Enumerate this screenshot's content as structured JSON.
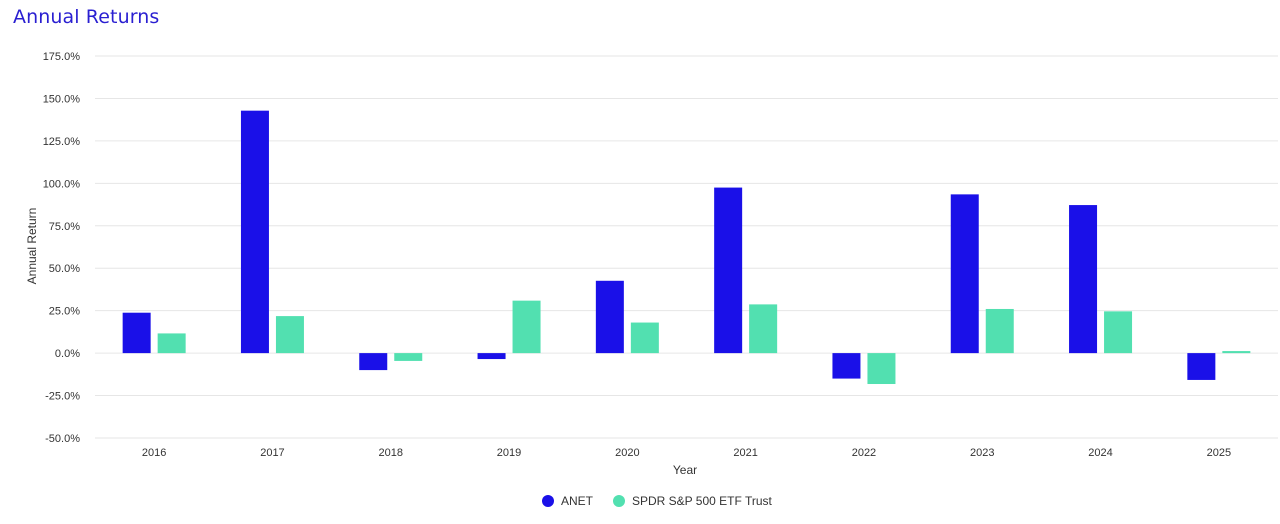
{
  "chart_data": {
    "type": "bar",
    "title": "Annual Returns",
    "xlabel": "Year",
    "ylabel": "Annual Return",
    "categories": [
      "2016",
      "2017",
      "2018",
      "2019",
      "2020",
      "2021",
      "2022",
      "2023",
      "2024",
      "2025"
    ],
    "series": [
      {
        "name": "ANET",
        "color": "#1a10e8",
        "values": [
          23.8,
          142.8,
          -10.0,
          -3.5,
          42.6,
          97.5,
          -15.0,
          93.5,
          87.2,
          -15.8
        ]
      },
      {
        "name": "SPDR S&P 500 ETF Trust",
        "color": "#52e0b0",
        "values": [
          11.6,
          21.8,
          -4.6,
          30.9,
          18.0,
          28.7,
          -18.2,
          26.0,
          24.6,
          1.2
        ]
      }
    ],
    "ylim": [
      -50,
      175
    ],
    "yticks": [
      -50,
      -25,
      0,
      25,
      50,
      75,
      100,
      125,
      150,
      175
    ],
    "ytick_labels": [
      "-50.0%",
      "-25.0%",
      "0.0%",
      "25.0%",
      "50.0%",
      "75.0%",
      "100.0%",
      "125.0%",
      "150.0%",
      "175.0%"
    ],
    "grid": true,
    "legend": "bottom-center"
  }
}
